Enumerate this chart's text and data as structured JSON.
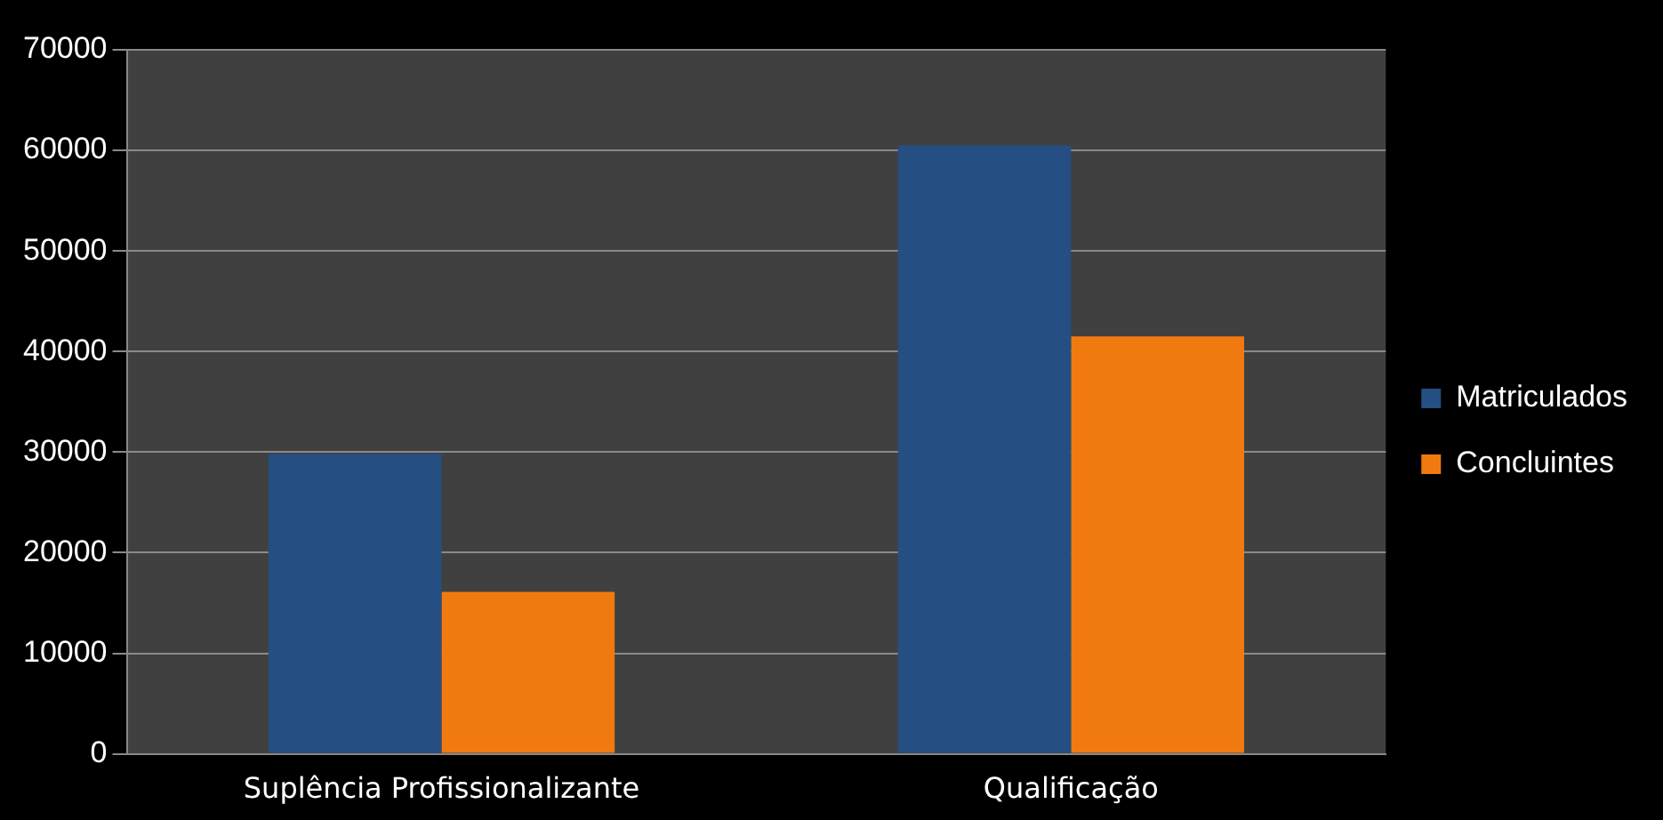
{
  "chart_data": {
    "type": "bar",
    "categories": [
      "Suplência Profissionalizante",
      "Qualificação"
    ],
    "series": [
      {
        "name": "Matriculados",
        "color": "#254e82",
        "values": [
          29800,
          60500
        ]
      },
      {
        "name": "Concluintes",
        "color": "#f07a10",
        "values": [
          16100,
          41500
        ]
      }
    ],
    "ylim": [
      0,
      70000
    ],
    "yticks": [
      0,
      10000,
      20000,
      30000,
      40000,
      50000,
      60000,
      70000
    ],
    "grid": "y",
    "legend": "right"
  }
}
